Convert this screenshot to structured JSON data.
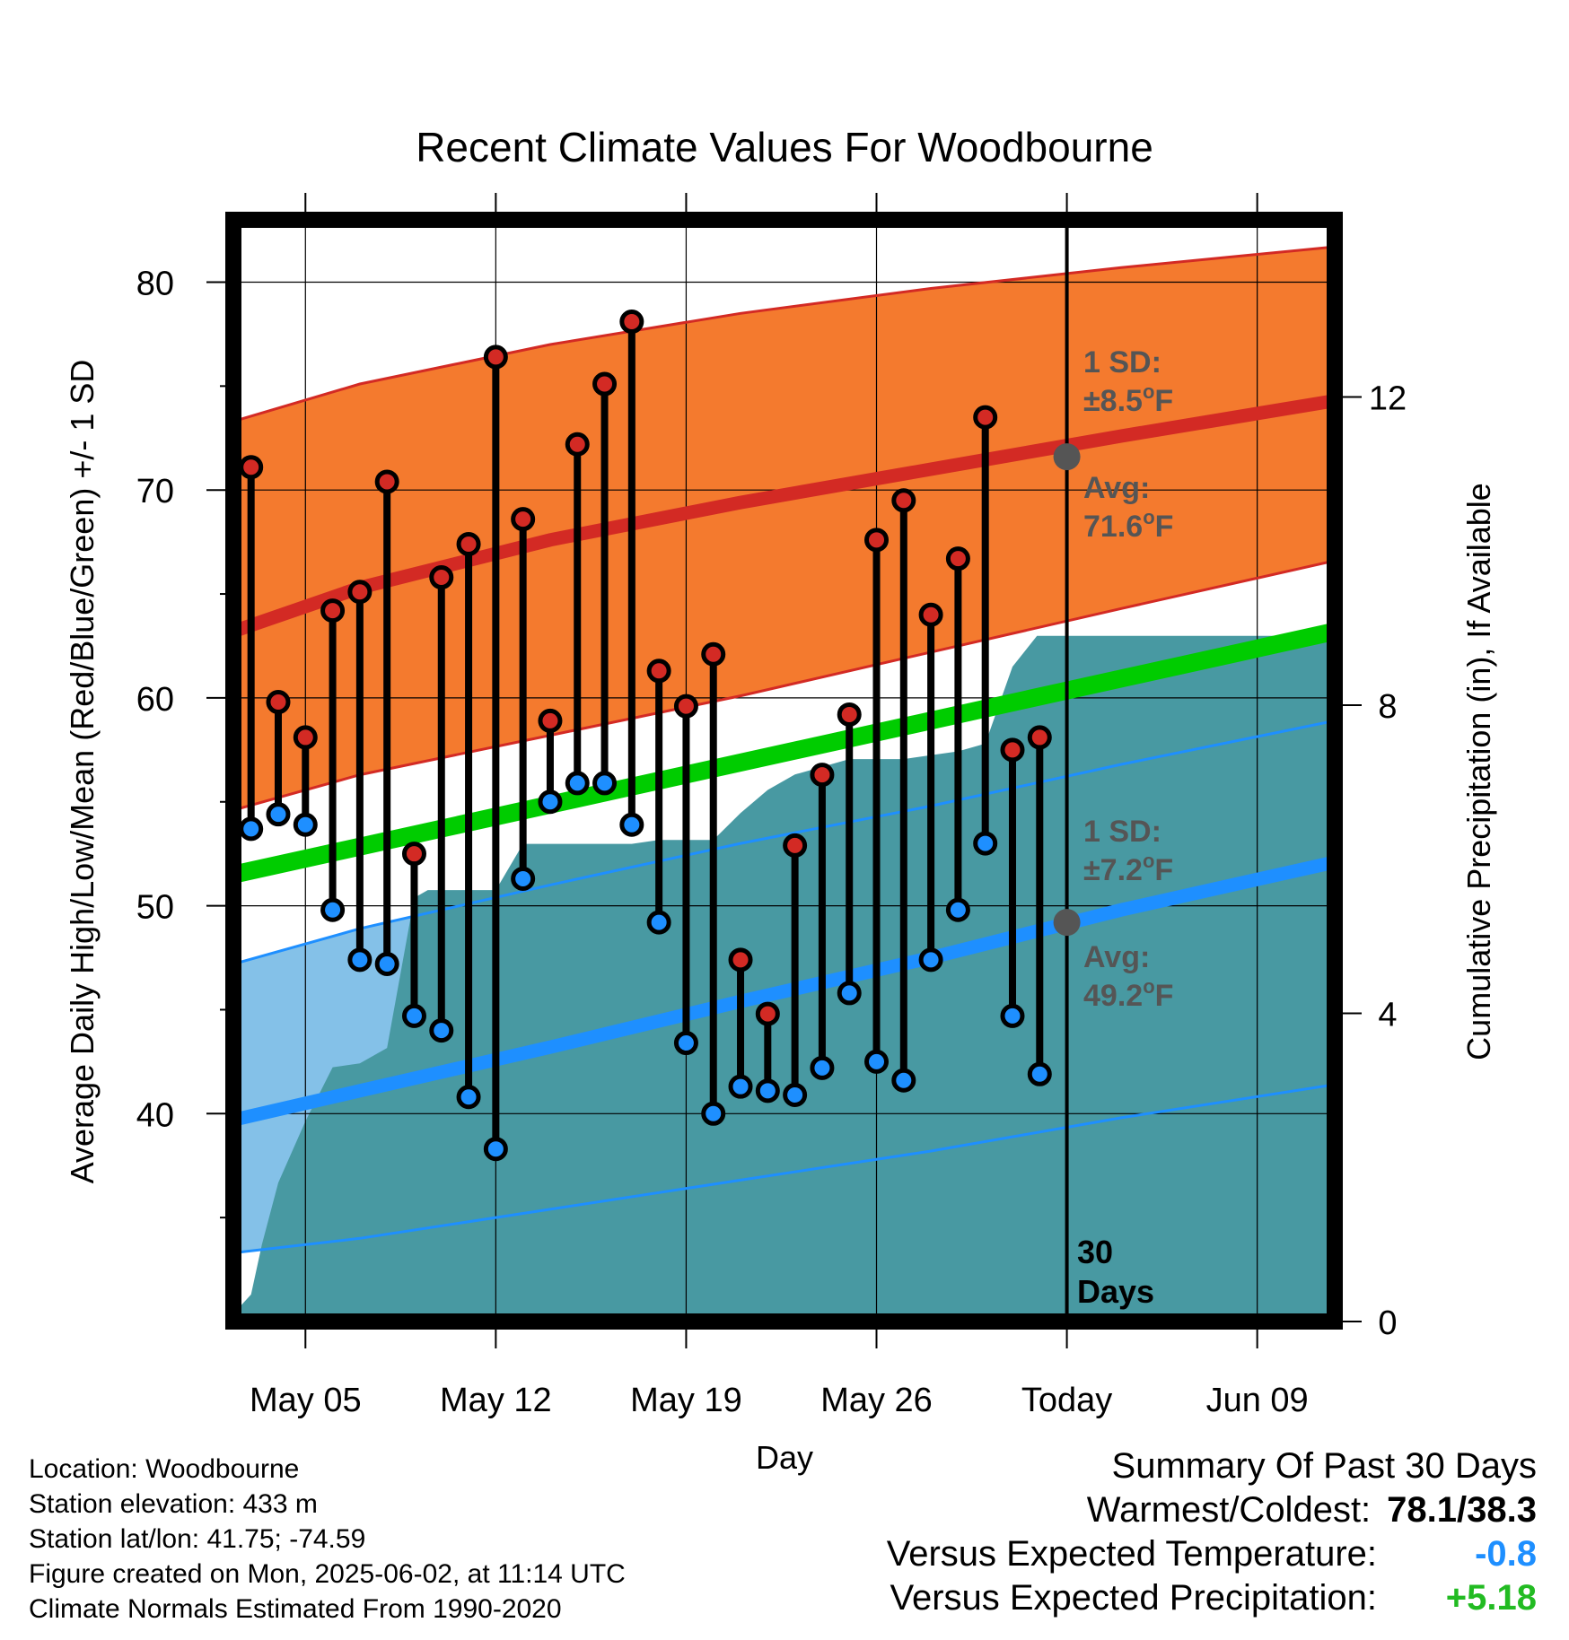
{
  "chart_data": {
    "type": "line",
    "title": "Recent Climate Values For Woodbourne",
    "xlabel": "Day",
    "ylabel": "Average Daily High/Low/Mean (Red/Blue/Green) +/- 1 SD",
    "y2label": "Cumulative Precipitation (in), If Available",
    "ylim": [
      30,
      83
    ],
    "y2lim": [
      0,
      14.3
    ],
    "x_tick_labels": [
      "May 05",
      "May 12",
      "May 19",
      "May 26",
      "Today",
      "Jun 09"
    ],
    "x_ticks_day": [
      5,
      12,
      19,
      26,
      33,
      40
    ],
    "y_ticks": [
      40,
      50,
      60,
      70,
      80
    ],
    "y2_ticks": [
      0,
      4,
      8,
      12
    ],
    "xlim_day": [
      2.35,
      42.85
    ],
    "today_day": 33,
    "grid": true,
    "days": [
      3,
      4,
      5,
      6,
      7,
      8,
      9,
      10,
      11,
      12,
      13,
      14,
      15,
      16,
      17,
      18,
      19,
      20,
      21,
      22,
      23,
      24,
      25,
      26,
      27,
      28,
      29,
      30,
      31,
      32
    ],
    "daily_high": [
      71.1,
      59.8,
      58.1,
      64.2,
      65.1,
      70.4,
      52.5,
      65.8,
      67.4,
      76.4,
      68.6,
      58.9,
      72.2,
      75.1,
      78.1,
      61.3,
      59.6,
      62.1,
      47.4,
      44.8,
      52.9,
      56.3,
      59.2,
      67.6,
      69.5,
      64.0,
      66.7,
      73.5,
      57.5,
      58.1
    ],
    "daily_low": [
      53.7,
      54.4,
      53.9,
      49.8,
      47.4,
      47.2,
      44.7,
      44.0,
      40.8,
      38.3,
      51.3,
      55.0,
      55.9,
      55.9,
      53.9,
      49.2,
      43.4,
      40.0,
      41.3,
      41.1,
      40.9,
      42.2,
      45.8,
      42.5,
      41.6,
      47.4,
      49.8,
      53.0,
      44.7,
      41.9
    ],
    "normal_high_mean": {
      "day": [
        2.35,
        7,
        14,
        21,
        28,
        35,
        42.85
      ],
      "value": [
        63.2,
        65.3,
        67.6,
        69.4,
        71.0,
        72.6,
        74.3
      ]
    },
    "normal_high_upper": {
      "day": [
        2.35,
        7,
        14,
        21,
        28,
        35,
        42.85
      ],
      "value": [
        73.3,
        75.1,
        77.0,
        78.5,
        79.7,
        80.7,
        81.7
      ]
    },
    "normal_high_lower": {
      "day": [
        2.35,
        7,
        14,
        21,
        28,
        35,
        42.85
      ],
      "value": [
        54.6,
        56.3,
        58.2,
        60.1,
        62.2,
        64.3,
        66.6
      ]
    },
    "normal_mean": {
      "day": [
        2.35,
        42.85
      ],
      "value": [
        51.5,
        63.2
      ]
    },
    "normal_low_mean": {
      "day": [
        2.35,
        7,
        14,
        21,
        28,
        35,
        42.85
      ],
      "value": [
        39.7,
        41.1,
        43.2,
        45.4,
        47.5,
        49.8,
        52.1
      ]
    },
    "normal_low_upper": {
      "day": [
        2.35,
        7,
        14,
        21,
        28,
        35,
        42.85
      ],
      "value": [
        47.2,
        48.9,
        51.0,
        53.0,
        54.8,
        56.8,
        58.9
      ]
    },
    "normal_low_lower": {
      "day": [
        2.35,
        7,
        14,
        21,
        28,
        35,
        42.85
      ],
      "value": [
        33.3,
        34.0,
        35.4,
        36.8,
        38.2,
        39.8,
        41.4
      ]
    },
    "cumulative_precip": {
      "day": [
        2.35,
        3,
        3.4,
        4,
        5,
        6,
        7,
        8,
        9,
        9.5,
        12,
        13,
        14,
        17,
        18,
        19,
        20,
        21,
        22,
        23,
        24,
        25,
        26,
        27,
        28,
        29,
        30,
        31,
        31.9,
        33,
        42.85
      ],
      "value": [
        0.1,
        0.35,
        1.0,
        1.8,
        2.6,
        3.3,
        3.35,
        3.55,
        5.5,
        5.6,
        5.6,
        6.2,
        6.2,
        6.2,
        6.25,
        6.25,
        6.25,
        6.6,
        6.9,
        7.1,
        7.2,
        7.3,
        7.3,
        7.3,
        7.35,
        7.4,
        7.5,
        8.5,
        8.9,
        8.9,
        8.9
      ]
    }
  },
  "annotations": {
    "high_sd_label": "1 SD:",
    "high_sd_value": "±8.5",
    "high_avg_label": "Avg:",
    "high_avg_value": "71.6",
    "high_avg": 71.6,
    "low_sd_label": "1 SD:",
    "low_sd_value": "±7.2",
    "low_avg_label": "Avg:",
    "low_avg_value": "49.2",
    "low_avg": 49.2,
    "degree_unit": "o",
    "unit_letter": "F",
    "today_days_number": "30",
    "today_days_word": "Days"
  },
  "footer": {
    "location": "Location: Woodbourne",
    "elevation": "Station elevation: 433 m",
    "latlon": "Station lat/lon: 41.75; -74.59",
    "created": "Figure created on Mon, 2025-06-02, at 11:14 UTC",
    "normals": "Climate Normals Estimated From 1990-2020"
  },
  "summary": {
    "heading": "Summary Of Past 30 Days",
    "warm_cold_label": "Warmest/Coldest:",
    "warm_cold_value": "78.1/38.3",
    "temp_label": "Versus Expected Temperature:",
    "temp_value": "-0.8",
    "precip_label": "Versus Expected Precipitation:",
    "precip_value": "+5.18"
  },
  "colors": {
    "high_band": "#f47a2e",
    "high_line": "#d32a24",
    "low_band": "#84c1e8",
    "low_line": "#1e8fff",
    "mean_line": "#00cc00",
    "precip": "#4899a2",
    "high_marker": "#d32a24",
    "low_marker": "#1e8fff",
    "annotation": "#555555",
    "temp_deviation": "#1e8fff",
    "precip_deviation": "#22bb22"
  }
}
